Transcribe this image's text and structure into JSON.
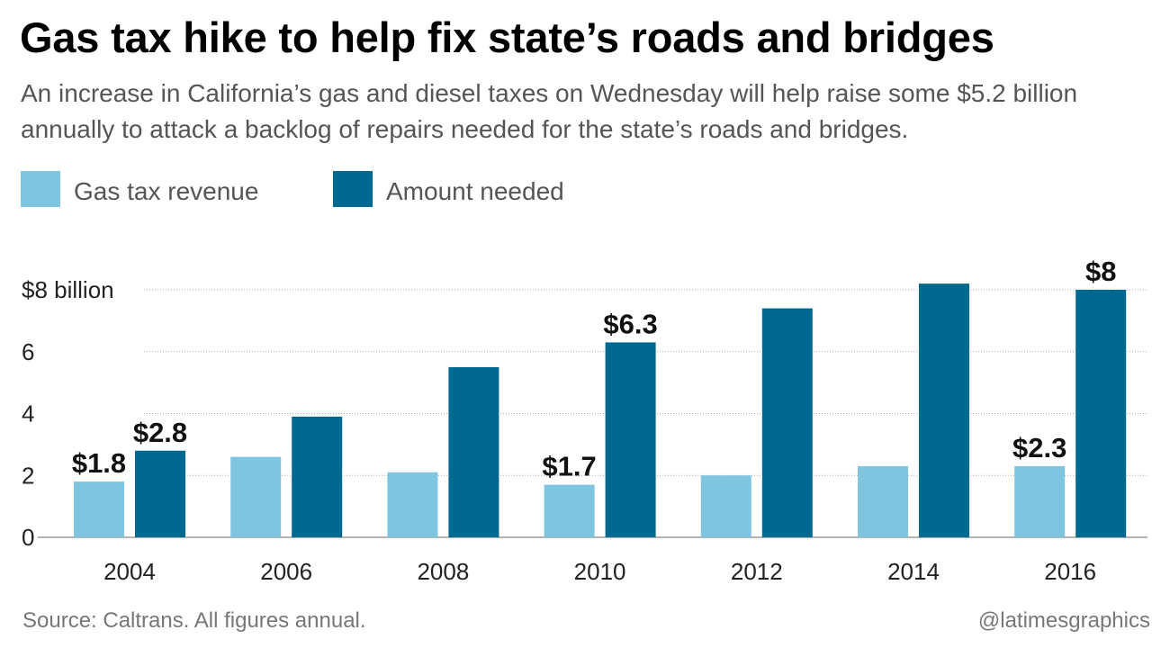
{
  "title": "Gas tax hike to help fix state’s roads and bridges",
  "subtitle": "An increase in California’s gas and diesel taxes on Wednesday will help raise some $5.2 billion annually to attack a backlog of repairs needed for the state’s roads and bridges.",
  "legend": [
    {
      "label": "Gas tax revenue",
      "color": "#7fc5e0"
    },
    {
      "label": "Amount needed",
      "color": "#00698f"
    }
  ],
  "chart_data": {
    "type": "bar",
    "categories": [
      "2004",
      "2006",
      "2008",
      "2010",
      "2012",
      "2014",
      "2016"
    ],
    "series": [
      {
        "name": "Gas tax revenue",
        "color": "#7fc5e0",
        "values": [
          1.8,
          2.6,
          2.1,
          1.7,
          2.0,
          2.3,
          2.3
        ]
      },
      {
        "name": "Amount needed",
        "color": "#00698f",
        "values": [
          2.8,
          3.9,
          5.5,
          6.3,
          7.4,
          8.2,
          8.0
        ]
      }
    ],
    "ylim": [
      0,
      8
    ],
    "yticks": [
      {
        "value": 0,
        "label": "0"
      },
      {
        "value": 2,
        "label": "2"
      },
      {
        "value": 4,
        "label": "4"
      },
      {
        "value": 6,
        "label": "6"
      },
      {
        "value": 8,
        "label": "$8 billion"
      }
    ],
    "annotations": [
      {
        "category": "2004",
        "series": 0,
        "label": "$1.8"
      },
      {
        "category": "2004",
        "series": 1,
        "label": "$2.8"
      },
      {
        "category": "2010",
        "series": 0,
        "label": "$1.7"
      },
      {
        "category": "2010",
        "series": 1,
        "label": "$6.3"
      },
      {
        "category": "2016",
        "series": 0,
        "label": "$2.3"
      },
      {
        "category": "2016",
        "series": 1,
        "label": "$8"
      }
    ],
    "grid": true
  },
  "footer": {
    "source": "Source: Caltrans. All figures annual.",
    "credit": "@latimesgraphics"
  }
}
